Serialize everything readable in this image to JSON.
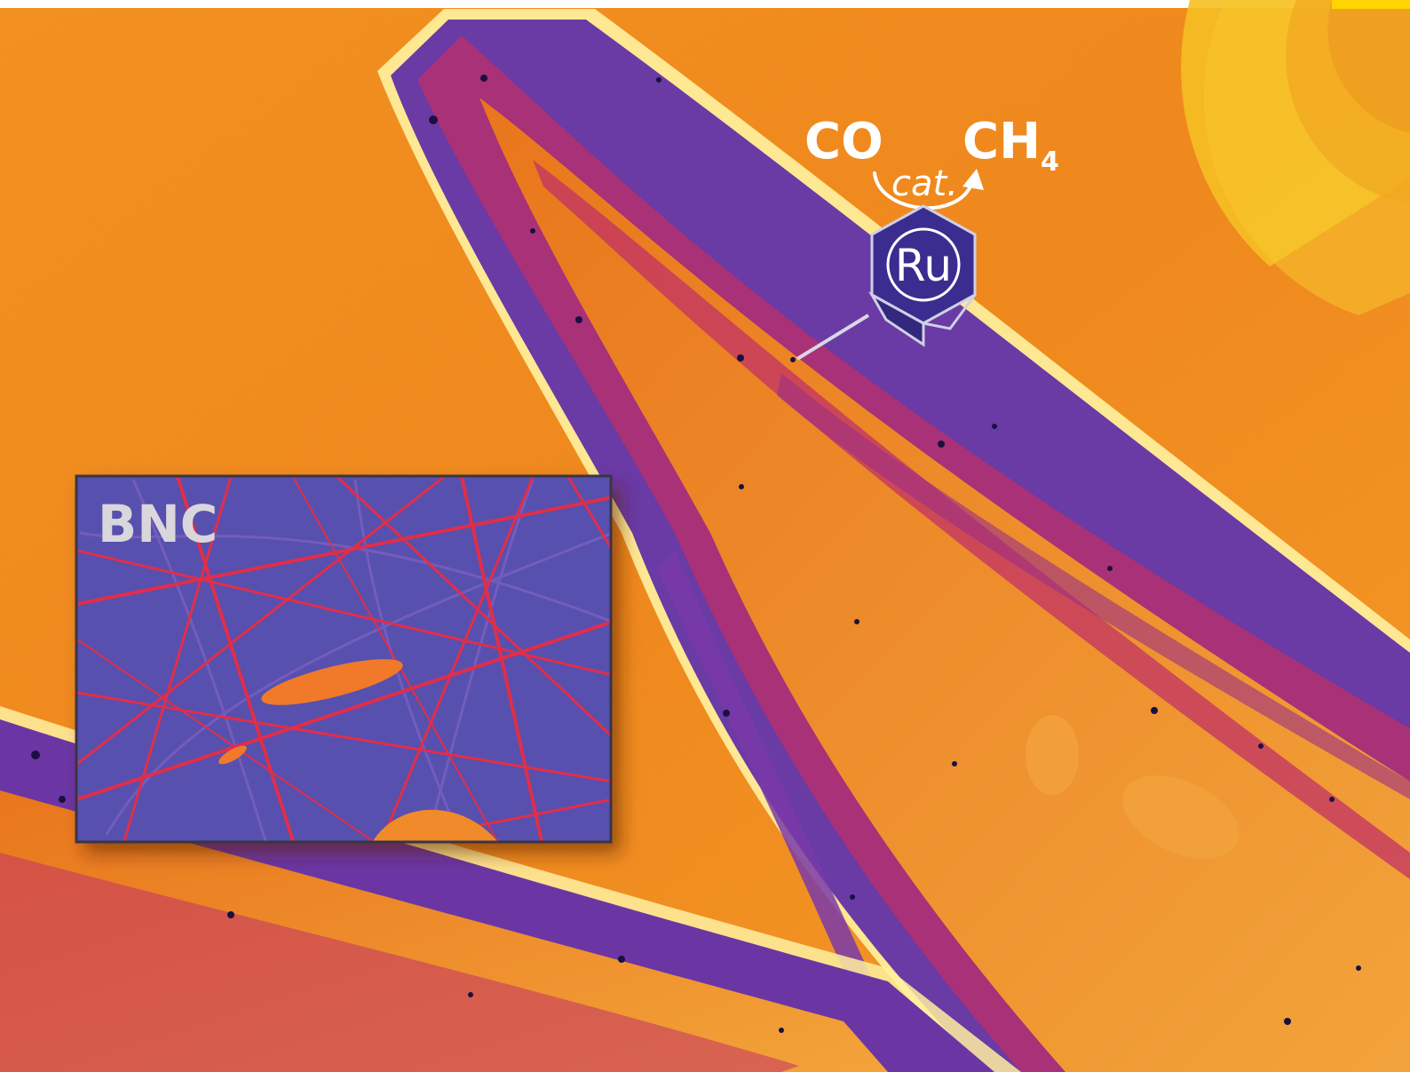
{
  "figure": {
    "reactant": "CO",
    "product_main": "CH",
    "product_subscript": "4",
    "catalyst_arrow_label": "cat.",
    "catalyst_metal": "Ru",
    "inset_label": "BNC"
  },
  "colors": {
    "background_orange": "#f08a1c",
    "fiber_purple": "#5b3aa0",
    "fiber_magenta": "#c8286a",
    "highlight_yellow": "#ffe36a",
    "ru_hexagon": "#3b2d8f",
    "inset_background": "#5a52b0",
    "inset_fibers": "#e0304a",
    "corner_arc_yellow": "#f7c51e"
  }
}
